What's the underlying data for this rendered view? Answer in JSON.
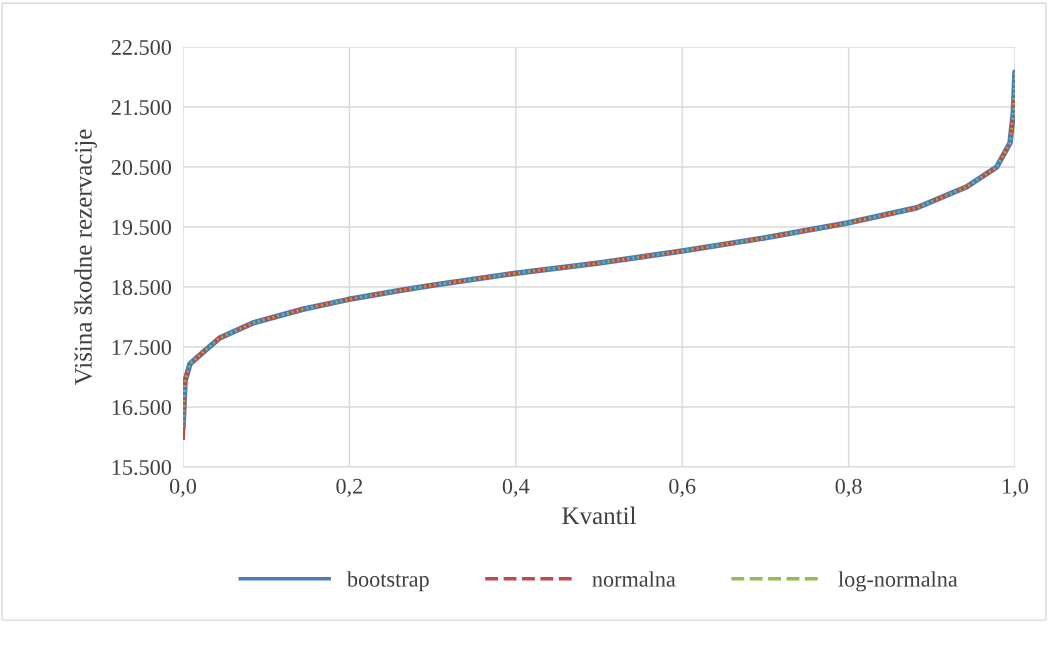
{
  "chart_data": {
    "type": "line",
    "xlabel": "Kvantil",
    "ylabel": "Višina škodne rezervacije",
    "x": [
      0.0,
      0.0024,
      0.0084,
      0.024,
      0.044,
      0.084,
      0.144,
      0.198,
      0.264,
      0.3,
      0.4,
      0.5,
      0.6,
      0.7,
      0.8,
      0.882,
      0.942,
      0.978,
      0.994,
      0.998,
      1.0
    ],
    "series": [
      {
        "name": "bootstrap",
        "color": "#4a7ebb",
        "line_style": "solid",
        "values": [
          16170,
          16930,
          17220,
          17410,
          17650,
          17900,
          18130,
          18290,
          18450,
          18530,
          18730,
          18900,
          19100,
          19320,
          19570,
          19820,
          20170,
          20500,
          20900,
          21400,
          22080
        ]
      },
      {
        "name": "normalna",
        "color": "#be4b48",
        "line_style": "dashed",
        "values": [
          15950,
          16930,
          17220,
          17410,
          17650,
          17900,
          18130,
          18290,
          18450,
          18530,
          18730,
          18900,
          19100,
          19320,
          19570,
          19820,
          20170,
          20500,
          20900,
          21400,
          21650
        ]
      },
      {
        "name": "log-normalna",
        "color": "#98b954",
        "line_style": "dotted",
        "values": [
          16170,
          16930,
          17220,
          17410,
          17650,
          17900,
          18130,
          18290,
          18450,
          18530,
          18730,
          18900,
          19100,
          19320,
          19570,
          19820,
          20170,
          20500,
          20900,
          21400,
          22080
        ]
      }
    ],
    "xlim": [
      0,
      1
    ],
    "xticks": [
      {
        "value": 0,
        "label": "0,0"
      },
      {
        "value": 0.2,
        "label": "0,2"
      },
      {
        "value": 0.4,
        "label": "0,4"
      },
      {
        "value": 0.6,
        "label": "0,6"
      },
      {
        "value": 0.8,
        "label": "0,8"
      },
      {
        "value": 1,
        "label": "1,0"
      }
    ],
    "ylim": [
      15500,
      22500
    ],
    "yticks": [
      {
        "value": 15500,
        "label": "15.500"
      },
      {
        "value": 16500,
        "label": "16.500"
      },
      {
        "value": 17500,
        "label": "17.500"
      },
      {
        "value": 18500,
        "label": "18.500"
      },
      {
        "value": 19500,
        "label": "19.500"
      },
      {
        "value": 20500,
        "label": "20.500"
      },
      {
        "value": 21500,
        "label": "21.500"
      },
      {
        "value": 22500,
        "label": "22.500"
      }
    ],
    "grid": true,
    "legend": "bottom",
    "marker": "none"
  }
}
